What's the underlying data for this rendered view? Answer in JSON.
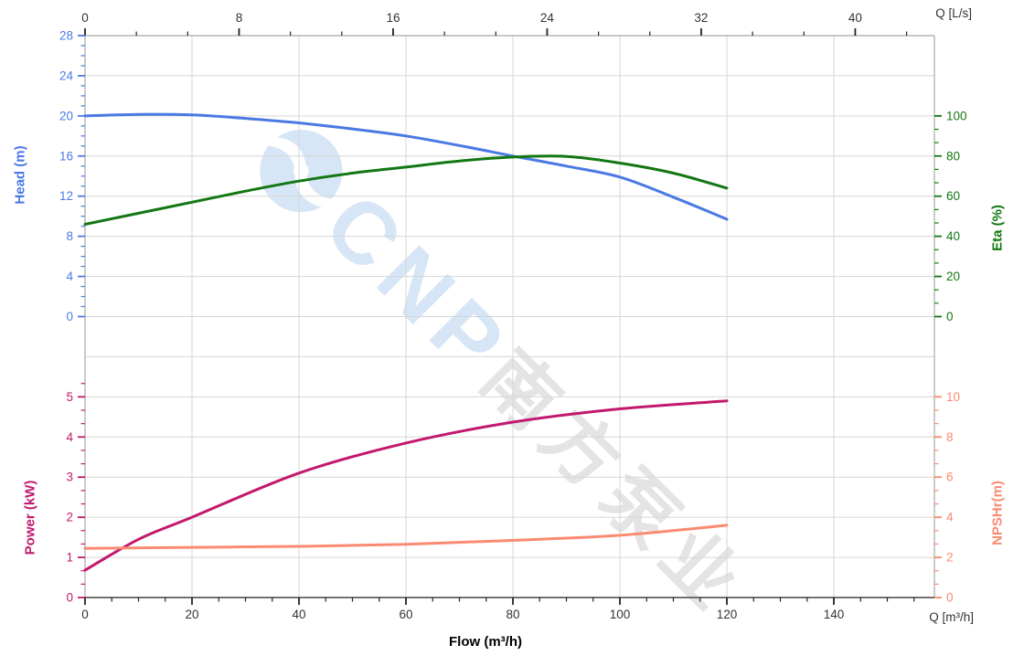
{
  "page": {
    "background": "#ffffff"
  },
  "labels": {
    "head_axis": "Head (m)",
    "eta_axis": "Eta (%)",
    "power_axis": "Power (kW)",
    "npshr_axis": "NPSHr(m)",
    "top_axis_unit": "Q [L/s]",
    "bottom_axis_unit": "Q [m³/h]",
    "flow_axis_title": "Flow (m³/h)"
  },
  "colors": {
    "head": "#4b79e4",
    "eta": "#137713",
    "power": "#c2186d",
    "npshr": "#fa8a72",
    "grid": "#d6d6d6",
    "border": "#a8a8a8",
    "axis_dark": "#222222",
    "watermark_latin": "#d7e6f6",
    "watermark_cn": "#e4e4e4"
  },
  "watermark": {
    "logo_icon": "cnp-wave-logo",
    "brand_letters": [
      "C",
      "N",
      "P"
    ],
    "cn_letters": [
      "南",
      "方",
      "泵",
      "业"
    ]
  },
  "chart_data": [
    {
      "type": "line",
      "title": "Head and Eta vs Flow",
      "xlabel_top": "Q [L/s]",
      "grid": true,
      "x_range_m3h": [
        0,
        158.8
      ],
      "top_axis": {
        "unit": "L/s",
        "major_ticks": [
          0,
          8,
          16,
          24,
          32,
          40
        ],
        "minor_per_major": 3
      },
      "axes": {
        "head": {
          "label": "Head (m)",
          "side": "left",
          "major_ticks": [
            0,
            4,
            8,
            12,
            16,
            20,
            24,
            28
          ],
          "minor_step": 1,
          "range": [
            0,
            28
          ]
        },
        "eta": {
          "label": "Eta (%)",
          "side": "right",
          "major_ticks": [
            0,
            20,
            40,
            60,
            80,
            100
          ],
          "minor_step": 6.667,
          "range": [
            0,
            100
          ]
        }
      },
      "series": [
        {
          "name": "Head",
          "axis": "head",
          "color_key": "head",
          "x": [
            0,
            10,
            20,
            30,
            40,
            50,
            60,
            70,
            80,
            90,
            100,
            110,
            120
          ],
          "y": [
            20.0,
            20.15,
            20.1,
            19.75,
            19.3,
            18.7,
            18.0,
            17.05,
            16.0,
            15.0,
            13.9,
            11.9,
            9.7
          ]
        },
        {
          "name": "Eta",
          "axis": "eta",
          "color_key": "eta",
          "x": [
            0,
            10,
            20,
            30,
            40,
            50,
            60,
            70,
            80,
            90,
            100,
            110,
            120
          ],
          "y": [
            46,
            51.5,
            57,
            62.5,
            67.5,
            71.5,
            74.5,
            77.5,
            79.5,
            79.8,
            76.5,
            71.5,
            64
          ]
        }
      ]
    },
    {
      "type": "line",
      "title": "Power and NPSHr vs Flow",
      "xlabel": "Flow (m³/h)",
      "grid": true,
      "bottom_axis": {
        "unit": "m³/h",
        "major_ticks": [
          0,
          20,
          40,
          60,
          80,
          100,
          120,
          140
        ],
        "minor_step": 5
      },
      "axes": {
        "power": {
          "label": "Power (kW)",
          "side": "left",
          "major_ticks": [
            0,
            1,
            2,
            3,
            4,
            5
          ],
          "minor_step": 0.3333,
          "range": [
            0,
            5
          ]
        },
        "npshr": {
          "label": "NPSHr(m)",
          "side": "right",
          "major_ticks": [
            0,
            2,
            4,
            6,
            8,
            10
          ],
          "minor_step": 0.6667,
          "range": [
            0,
            10
          ]
        }
      },
      "series": [
        {
          "name": "Power",
          "axis": "power",
          "color_key": "power",
          "x": [
            0,
            10,
            20,
            40,
            60,
            80,
            100,
            120
          ],
          "y": [
            0.68,
            1.45,
            2.0,
            3.1,
            3.85,
            4.37,
            4.7,
            4.9
          ]
        },
        {
          "name": "NPSHr",
          "axis": "npshr",
          "color_key": "npshr",
          "x": [
            0,
            20,
            40,
            60,
            80,
            100,
            120
          ],
          "y": [
            2.45,
            2.5,
            2.55,
            2.65,
            2.85,
            3.1,
            3.6
          ]
        }
      ]
    }
  ]
}
